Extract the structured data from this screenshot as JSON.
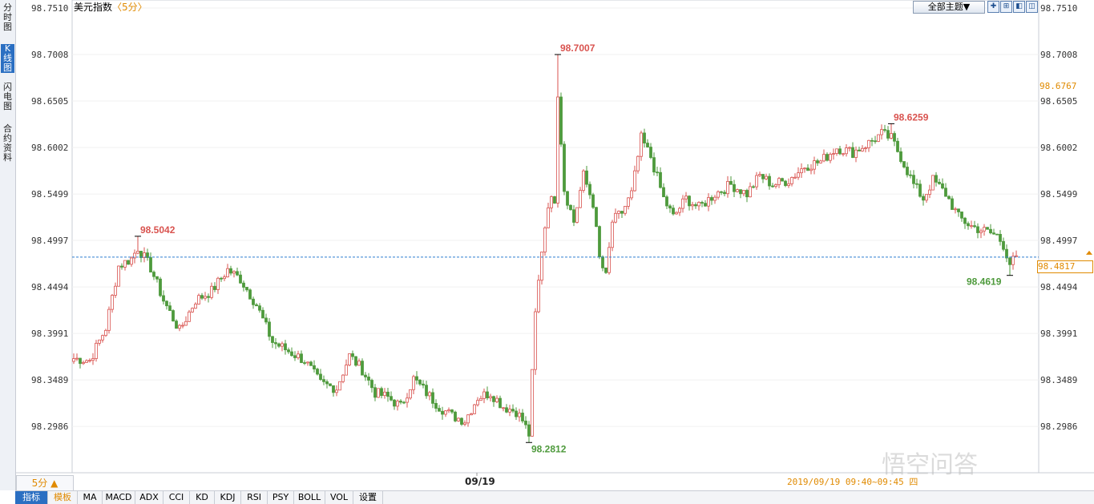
{
  "left_tabs": [
    {
      "label": "分时图",
      "active": false
    },
    {
      "label": "K线图",
      "active": true
    },
    {
      "label": "闪电图",
      "active": false
    },
    {
      "label": "合约资料",
      "active": false
    }
  ],
  "header": {
    "title": "美元指数",
    "period": "〈5分〉",
    "theme_button": "全部主题▼",
    "tool_icons": [
      "expand-icon",
      "move-icon",
      "prev-icon",
      "settings-icon"
    ],
    "tool_glyphs": [
      "✚",
      "⊞",
      "◧",
      "◫"
    ]
  },
  "footer": {
    "period_selector": "5分 ▲",
    "date": "09/19",
    "time_range": "2019/09/19 09:40~09:45 四",
    "watermark": "悟空问答"
  },
  "indicator_tabs": [
    "指标",
    "模板",
    "MA",
    "MACD",
    "ADX",
    "CCI",
    "KD",
    "KDJ",
    "RSI",
    "PSY",
    "BOLL",
    "VOL",
    "设置"
  ],
  "price_markers": {
    "current": "98.4817",
    "reference": "98.6767"
  },
  "colors": {
    "up": "#d9534f",
    "down": "#4e9a3c",
    "accent": "#e08a00",
    "reference_line": "#2f7fd0",
    "active_tab": "#2b6fc2"
  },
  "chart_data": {
    "type": "candlestick",
    "ylim": [
      98.2485,
      98.751
    ],
    "y_ticks": [
      "98.7510",
      "98.7008",
      "98.6505",
      "98.6002",
      "98.5499",
      "98.4997",
      "98.4494",
      "98.3991",
      "98.3489",
      "98.2986"
    ],
    "reference_line_value": 98.4817,
    "annotations": [
      {
        "label": "98.5042",
        "value": 98.5042,
        "candle": 20,
        "kind": "high"
      },
      {
        "label": "98.7007",
        "value": 98.7007,
        "candle": 151,
        "kind": "high"
      },
      {
        "label": "98.2812",
        "value": 98.2812,
        "candle": 142,
        "kind": "low"
      },
      {
        "label": "98.6259",
        "value": 98.6259,
        "candle": 255,
        "kind": "high"
      },
      {
        "label": "98.4619",
        "value": 98.4619,
        "candle": 292,
        "kind": "low"
      }
    ],
    "waypoints": [
      [
        0,
        98.372
      ],
      [
        5,
        98.37
      ],
      [
        10,
        98.405
      ],
      [
        14,
        98.472
      ],
      [
        18,
        98.48
      ],
      [
        20,
        98.492
      ],
      [
        24,
        98.47
      ],
      [
        28,
        98.435
      ],
      [
        33,
        98.402
      ],
      [
        38,
        98.435
      ],
      [
        43,
        98.445
      ],
      [
        48,
        98.468
      ],
      [
        52,
        98.458
      ],
      [
        57,
        98.43
      ],
      [
        62,
        98.39
      ],
      [
        67,
        98.38
      ],
      [
        72,
        98.37
      ],
      [
        77,
        98.345
      ],
      [
        82,
        98.34
      ],
      [
        86,
        98.375
      ],
      [
        90,
        98.36
      ],
      [
        94,
        98.335
      ],
      [
        98,
        98.33
      ],
      [
        102,
        98.32
      ],
      [
        106,
        98.35
      ],
      [
        110,
        98.335
      ],
      [
        114,
        98.32
      ],
      [
        118,
        98.31
      ],
      [
        122,
        98.305
      ],
      [
        126,
        98.33
      ],
      [
        130,
        98.335
      ],
      [
        134,
        98.32
      ],
      [
        138,
        98.315
      ],
      [
        140,
        98.305
      ],
      [
        142,
        98.29
      ],
      [
        144,
        98.42
      ],
      [
        146,
        98.49
      ],
      [
        148,
        98.54
      ],
      [
        150,
        98.545
      ],
      [
        151,
        98.66
      ],
      [
        153,
        98.555
      ],
      [
        156,
        98.52
      ],
      [
        159,
        98.57
      ],
      [
        162,
        98.54
      ],
      [
        164,
        98.48
      ],
      [
        166,
        98.46
      ],
      [
        168,
        98.52
      ],
      [
        171,
        98.53
      ],
      [
        174,
        98.55
      ],
      [
        177,
        98.61
      ],
      [
        180,
        98.59
      ],
      [
        184,
        98.545
      ],
      [
        187,
        98.525
      ],
      [
        191,
        98.545
      ],
      [
        195,
        98.535
      ],
      [
        200,
        98.55
      ],
      [
        205,
        98.56
      ],
      [
        210,
        98.55
      ],
      [
        214,
        98.57
      ],
      [
        218,
        98.56
      ],
      [
        223,
        98.565
      ],
      [
        228,
        98.58
      ],
      [
        233,
        98.585
      ],
      [
        238,
        98.6
      ],
      [
        243,
        98.595
      ],
      [
        248,
        98.605
      ],
      [
        252,
        98.615
      ],
      [
        255,
        98.61
      ],
      [
        258,
        98.59
      ],
      [
        262,
        98.56
      ],
      [
        265,
        98.545
      ],
      [
        268,
        98.565
      ],
      [
        272,
        98.55
      ],
      [
        276,
        98.525
      ],
      [
        280,
        98.515
      ],
      [
        284,
        98.51
      ],
      [
        288,
        98.505
      ],
      [
        290,
        98.495
      ],
      [
        292,
        98.475
      ],
      [
        294,
        98.48
      ]
    ]
  }
}
